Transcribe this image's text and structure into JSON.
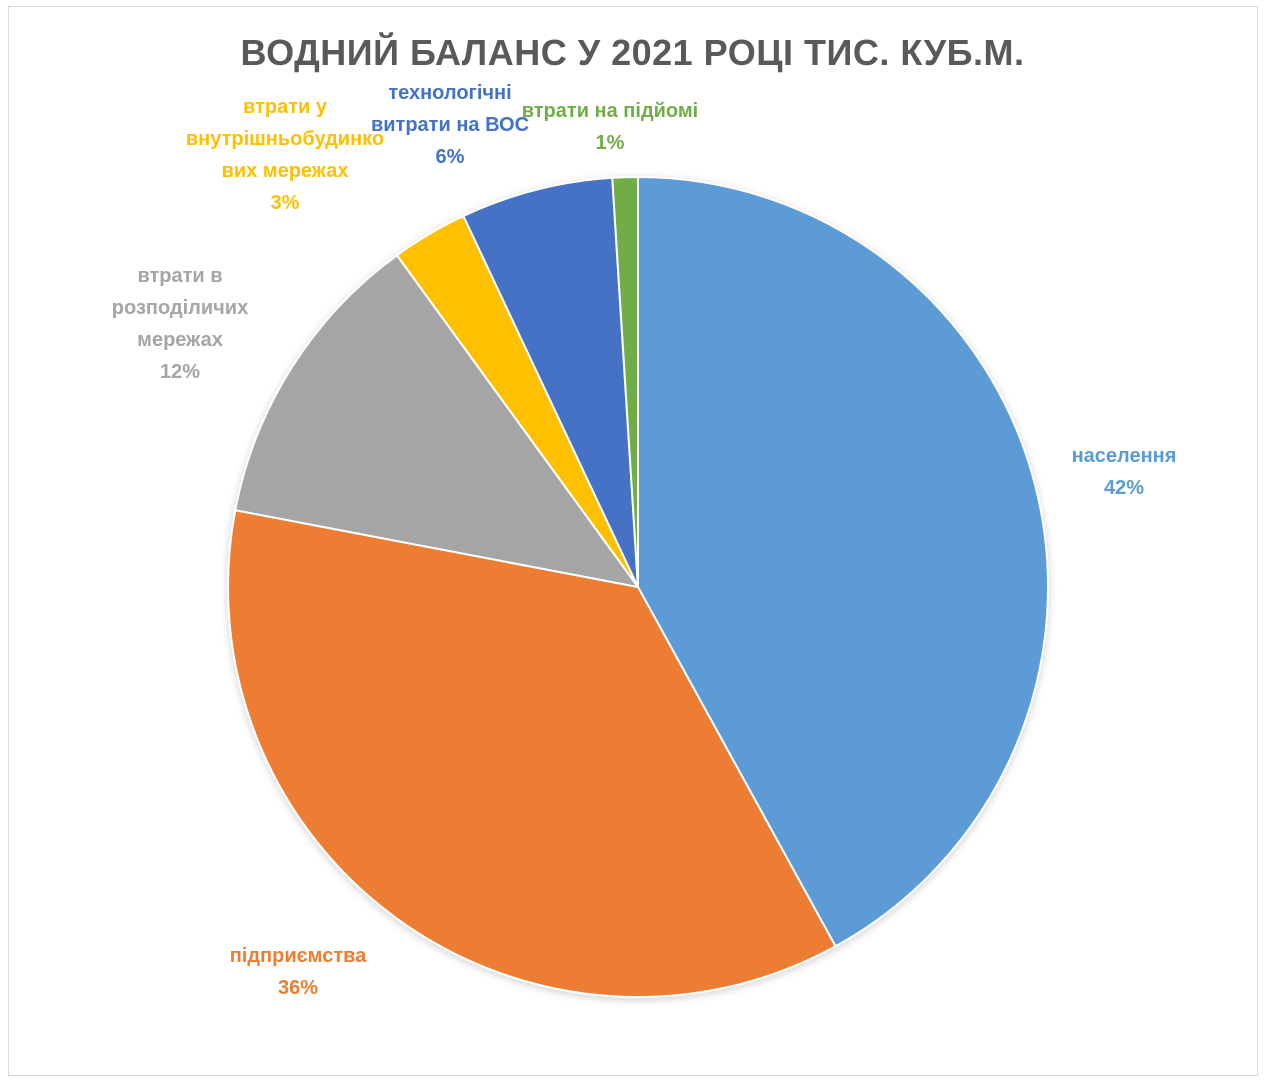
{
  "chart_data": {
    "type": "pie",
    "title": "ВОДНИЙ БАЛАНС У 2021 РОЦІ  ТИС. КУБ.М.",
    "slices": [
      {
        "label": [
          "населення"
        ],
        "percent_label": "42%",
        "value": 42,
        "color": "#5B9BD5"
      },
      {
        "label": [
          "підприємства"
        ],
        "percent_label": "36%",
        "value": 36,
        "color": "#ED7D31"
      },
      {
        "label": [
          "втрати в",
          "розподіличих",
          "мережах"
        ],
        "percent_label": "12%",
        "value": 12,
        "color": "#A5A5A5"
      },
      {
        "label": [
          "втрати у",
          "внутрішньобудинко",
          "вих мережах"
        ],
        "percent_label": "3%",
        "value": 3,
        "color": "#FFC000"
      },
      {
        "label": [
          "технологічні",
          "витрати на ВОС"
        ],
        "percent_label": "6%",
        "value": 6,
        "color": "#4472C4"
      },
      {
        "label": [
          "втрати на підйомі"
        ],
        "percent_label": "1%",
        "value": 1,
        "color": "#70AD47"
      }
    ],
    "legend": "none"
  }
}
